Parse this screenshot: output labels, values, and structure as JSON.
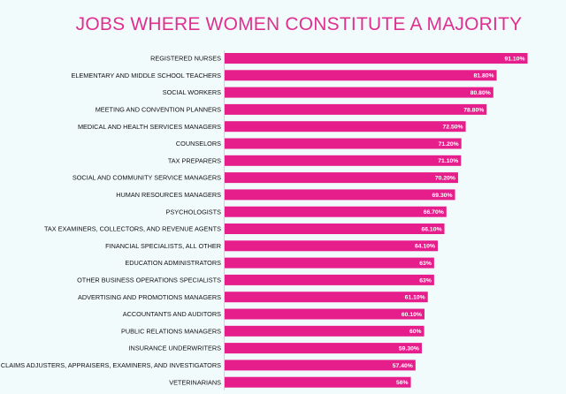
{
  "chart_data": {
    "type": "bar",
    "orientation": "horizontal",
    "title": "JOBS WHERE WOMEN CONSTITUTE A MAJORITY",
    "categories": [
      "REGISTERED NURSES",
      "ELEMENTARY AND MIDDLE SCHOOL TEACHERS",
      "SOCIAL WORKERS",
      "MEETING AND CONVENTION PLANNERS",
      "MEDICAL AND HEALTH SERVICES MANAGERS",
      "COUNSELORS",
      "TAX PREPARERS",
      "SOCIAL AND COMMUNITY SERVICE MANAGERS",
      "HUMAN RESOURCES MANAGERS",
      "PSYCHOLOGISTS",
      "TAX EXAMINERS, COLLECTORS, AND REVENUE AGENTS",
      "FINANCIAL SPECIALISTS, ALL OTHER",
      "EDUCATION ADMINISTRATORS",
      "OTHER BUSINESS OPERATIONS SPECIALISTS",
      "ADVERTISING AND PROMOTIONS MANAGERS",
      "ACCOUNTANTS AND AUDITORS",
      "PUBLIC RELATIONS MANAGERS",
      "INSURANCE UNDERWRITERS",
      "CLAIMS ADJUSTERS, APPRAISERS, EXAMINERS, AND INVESTIGATORS",
      "VETERINARIANS"
    ],
    "values": [
      91.1,
      81.8,
      80.8,
      78.8,
      72.5,
      71.2,
      71.1,
      70.2,
      69.3,
      66.7,
      66.1,
      64.1,
      63,
      63,
      61.1,
      60.1,
      60,
      59.3,
      57.4,
      56
    ],
    "value_labels": [
      "91.10%",
      "81.80%",
      "80.80%",
      "78.80%",
      "72.50%",
      "71.20%",
      "71.10%",
      "70.20%",
      "69.30%",
      "66.70%",
      "66.10%",
      "64.10%",
      "63%",
      "63%",
      "61.10%",
      "60.10%",
      "60%",
      "59.30%",
      "57.40%",
      "56%"
    ],
    "unit": "%",
    "xlim": [
      0,
      100
    ],
    "grid": false,
    "legend": "none",
    "bar_color": "#e61e8c",
    "title_color": "#e0308f"
  }
}
